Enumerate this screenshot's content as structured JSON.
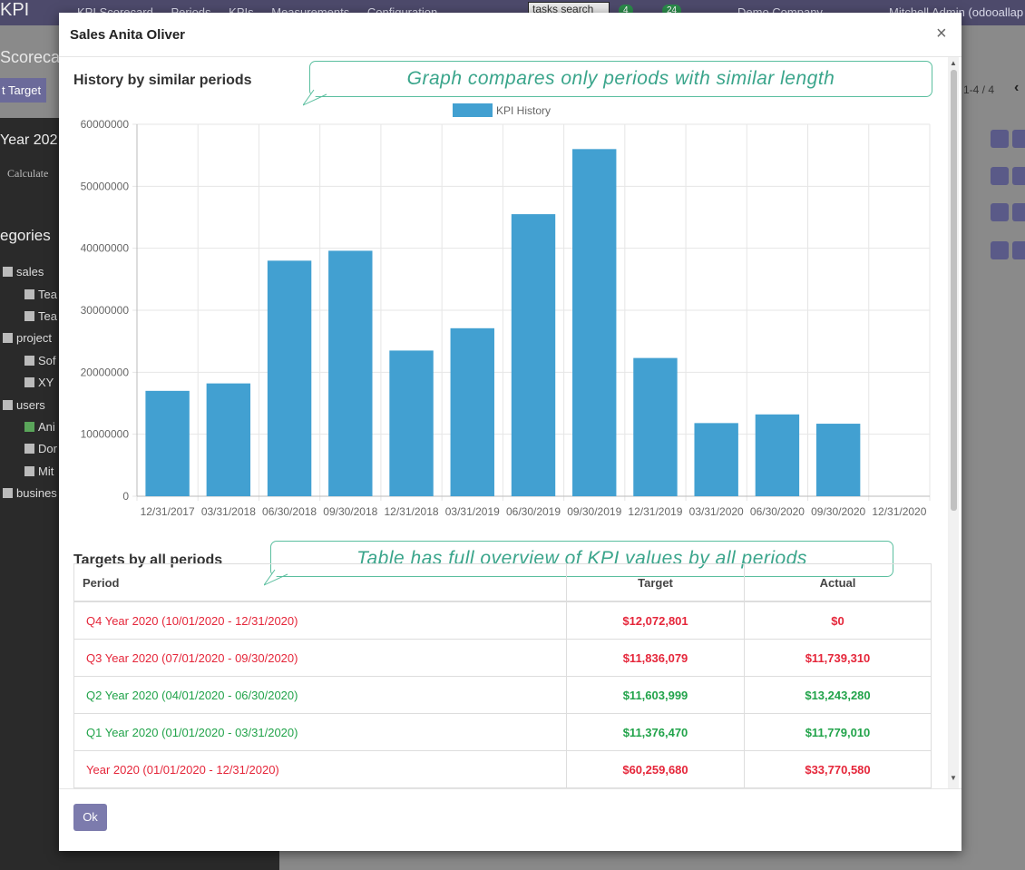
{
  "topbar": {
    "brand": "KPI",
    "menu": [
      "KPI Scorecard",
      "Periods",
      "KPIs",
      "Measurements",
      "Configuration"
    ],
    "search": "tasks search",
    "badge1": "4",
    "badge2": "24",
    "company": "Demo Company",
    "user": "Mitchell Admin (odooallap"
  },
  "background": {
    "scorecard": "Scorecar",
    "set_target": "t Target",
    "year": "Year 202",
    "calculate": "Calculate",
    "categories": "egories",
    "pager": "1-4 / 4",
    "tree": [
      {
        "label": "sales",
        "checked": false
      },
      {
        "label": "Tea",
        "checked": false
      },
      {
        "label": "Tea",
        "checked": false
      },
      {
        "label": "project",
        "checked": false
      },
      {
        "label": "Sof",
        "checked": false
      },
      {
        "label": "XY",
        "checked": false
      },
      {
        "label": "users",
        "checked": false
      },
      {
        "label": "Ani",
        "checked": true
      },
      {
        "label": "Dor",
        "checked": false
      },
      {
        "label": "Mit",
        "checked": false
      },
      {
        "label": "busines",
        "checked": false
      }
    ]
  },
  "modal": {
    "title": "Sales Anita Oliver",
    "close": "×",
    "history_title": "History by similar periods",
    "targets_title": "Targets by all periods",
    "ok_label": "Ok"
  },
  "callouts": {
    "graph": "Graph compares only periods with similar length",
    "table": "Table has full overview of KPI values by all periods"
  },
  "chart_data": {
    "type": "bar",
    "series": [
      {
        "name": "KPI History",
        "color": "#42a0d1",
        "values": [
          17000000,
          18200000,
          38000000,
          39600000,
          23500000,
          27100000,
          45500000,
          56000000,
          22300000,
          11800000,
          13200000,
          11700000,
          0
        ]
      }
    ],
    "categories": [
      "12/31/2017",
      "03/31/2018",
      "06/30/2018",
      "09/30/2018",
      "12/31/2018",
      "03/31/2019",
      "06/30/2019",
      "09/30/2019",
      "12/31/2019",
      "03/31/2020",
      "06/30/2020",
      "09/30/2020",
      "12/31/2020"
    ],
    "yticks": [
      "0",
      "10000000",
      "20000000",
      "30000000",
      "40000000",
      "50000000",
      "60000000"
    ],
    "ylim": [
      0,
      60000000
    ],
    "legend_position": "top",
    "grid": true
  },
  "table": {
    "headers": [
      "Period",
      "Target",
      "Actual"
    ],
    "rows": [
      {
        "period": "Q4 Year 2020 (10/01/2020 - 12/31/2020)",
        "target": "$12,072,801",
        "actual": "$0",
        "status": "red"
      },
      {
        "period": "Q3 Year 2020 (07/01/2020 - 09/30/2020)",
        "target": "$11,836,079",
        "actual": "$11,739,310",
        "status": "red"
      },
      {
        "period": "Q2 Year 2020 (04/01/2020 - 06/30/2020)",
        "target": "$11,603,999",
        "actual": "$13,243,280",
        "status": "green"
      },
      {
        "period": "Q1 Year 2020 (01/01/2020 - 03/31/2020)",
        "target": "$11,376,470",
        "actual": "$11,779,010",
        "status": "green"
      },
      {
        "period": "Year 2020 (01/01/2020 - 12/31/2020)",
        "target": "$60,259,680",
        "actual": "$33,770,580",
        "status": "red"
      },
      {
        "period": "",
        "target": "",
        "actual": "",
        "status": "red"
      }
    ]
  }
}
